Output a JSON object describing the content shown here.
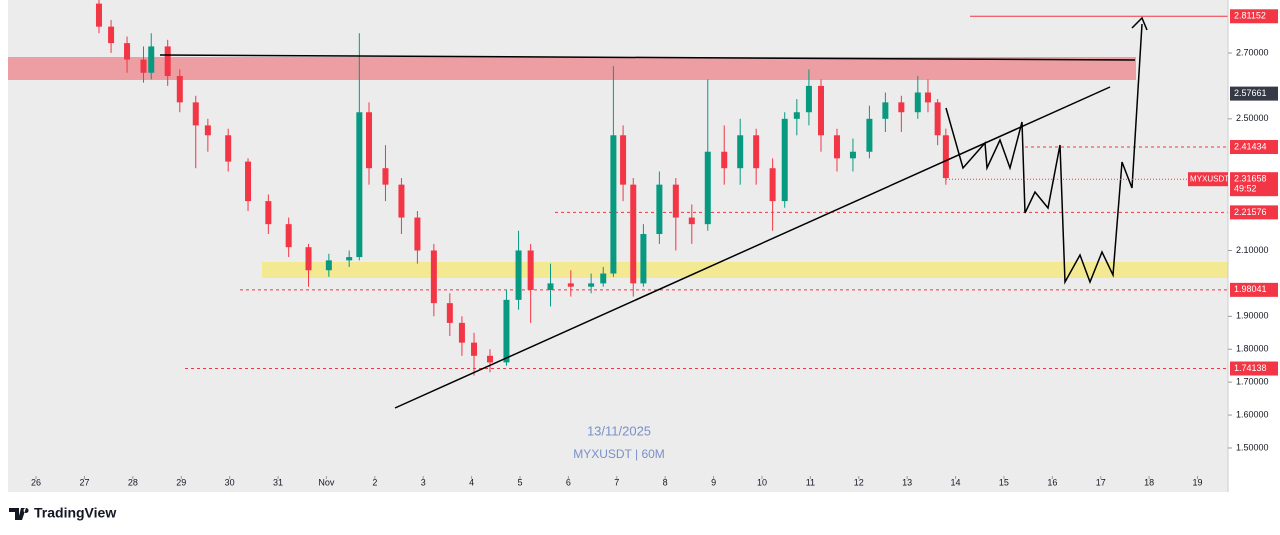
{
  "chart_data": {
    "type": "candlestick",
    "symbol": "MYXUSDT",
    "countdown": "49:52",
    "last_price": 2.31658,
    "watermark": [
      "13/11/2025",
      "MYXUSDT | 60M"
    ],
    "up_color": "#089981",
    "down_color": "#f23645",
    "xlim": [
      -0.58,
      24.63
    ],
    "ylim": [
      1.427,
      2.861
    ],
    "xticks": [
      {
        "value": 0,
        "label": "26"
      },
      {
        "value": 1,
        "label": "27"
      },
      {
        "value": 2,
        "label": "28"
      },
      {
        "value": 3,
        "label": "29"
      },
      {
        "value": 4,
        "label": "30"
      },
      {
        "value": 5,
        "label": "31"
      },
      {
        "value": 6,
        "label": "Nov"
      },
      {
        "value": 7,
        "label": "2"
      },
      {
        "value": 8,
        "label": "3"
      },
      {
        "value": 9,
        "label": "4"
      },
      {
        "value": 10,
        "label": "5"
      },
      {
        "value": 11,
        "label": "6"
      },
      {
        "value": 12,
        "label": "7"
      },
      {
        "value": 13,
        "label": "8"
      },
      {
        "value": 14,
        "label": "9"
      },
      {
        "value": 15,
        "label": "10"
      },
      {
        "value": 16,
        "label": "11"
      },
      {
        "value": 17,
        "label": "12"
      },
      {
        "value": 18,
        "label": "13"
      },
      {
        "value": 19,
        "label": "14"
      },
      {
        "value": 20,
        "label": "15"
      },
      {
        "value": 21,
        "label": "16"
      },
      {
        "value": 22,
        "label": "17"
      },
      {
        "value": 23,
        "label": "18"
      },
      {
        "value": 24,
        "label": "19"
      }
    ],
    "yticks": [
      {
        "value": 1.5,
        "label": "1.50000"
      },
      {
        "value": 1.6,
        "label": "1.60000"
      },
      {
        "value": 1.7,
        "label": "1.70000"
      },
      {
        "value": 1.8,
        "label": "1.80000"
      },
      {
        "value": 1.9,
        "label": "1.90000"
      },
      {
        "value": 2.1,
        "label": "2.10000"
      },
      {
        "value": 2.5,
        "label": "2.50000"
      },
      {
        "value": 2.7,
        "label": "2.70000"
      }
    ],
    "levels": [
      {
        "value": 2.81152,
        "color": "#f23645"
      },
      {
        "value": 2.57661,
        "color": "#363a45"
      },
      {
        "value": 2.41434,
        "color": "#f23645"
      },
      {
        "value": 2.21576,
        "color": "#f23645"
      },
      {
        "value": 1.98041,
        "color": "#f23645"
      },
      {
        "value": 1.74138,
        "color": "#f23645"
      }
    ],
    "x": [
      1.3,
      1.55,
      1.88,
      2.22,
      2.38,
      2.72,
      2.97,
      3.3,
      3.55,
      3.97,
      4.38,
      4.8,
      5.22,
      5.63,
      6.05,
      6.47,
      6.68,
      6.88,
      7.22,
      7.55,
      7.88,
      8.22,
      8.55,
      8.8,
      9.05,
      9.38,
      9.72,
      9.97,
      10.22,
      10.63,
      11.05,
      11.47,
      11.72,
      11.93,
      12.13,
      12.34,
      12.55,
      12.88,
      13.22,
      13.55,
      13.88,
      14.22,
      14.55,
      14.88,
      15.22,
      15.47,
      15.72,
      15.97,
      16.22,
      16.55,
      16.88,
      17.22,
      17.55,
      17.88,
      18.22,
      18.43,
      18.63,
      18.8
    ],
    "open": [
      2.85,
      2.78,
      2.73,
      2.68,
      2.64,
      2.72,
      2.63,
      2.55,
      2.48,
      2.45,
      2.37,
      2.25,
      2.18,
      2.11,
      2.04,
      2.07,
      2.08,
      2.52,
      2.35,
      2.3,
      2.2,
      2.1,
      1.94,
      1.88,
      1.82,
      1.78,
      1.76,
      1.95,
      2.1,
      1.98,
      2.0,
      1.99,
      2.0,
      2.03,
      2.45,
      2.3,
      2.0,
      2.15,
      2.3,
      2.2,
      2.18,
      2.4,
      2.35,
      2.45,
      2.35,
      2.25,
      2.5,
      2.52,
      2.6,
      2.45,
      2.38,
      2.4,
      2.5,
      2.55,
      2.52,
      2.58,
      2.55,
      2.45
    ],
    "high": [
      2.92,
      2.8,
      2.75,
      2.72,
      2.76,
      2.74,
      2.65,
      2.57,
      2.5,
      2.47,
      2.38,
      2.27,
      2.2,
      2.12,
      2.09,
      2.1,
      2.76,
      2.55,
      2.42,
      2.32,
      2.22,
      2.12,
      1.97,
      1.9,
      1.85,
      1.8,
      1.98,
      2.16,
      2.12,
      2.06,
      2.04,
      2.03,
      2.05,
      2.66,
      2.48,
      2.32,
      2.18,
      2.34,
      2.32,
      2.24,
      2.62,
      2.48,
      2.5,
      2.47,
      2.38,
      2.52,
      2.56,
      2.65,
      2.62,
      2.47,
      2.44,
      2.54,
      2.58,
      2.57,
      2.63,
      2.62,
      2.56,
      2.47
    ],
    "low": [
      2.76,
      2.7,
      2.64,
      2.61,
      2.62,
      2.6,
      2.52,
      2.35,
      2.4,
      2.34,
      2.22,
      2.15,
      2.08,
      1.99,
      2.02,
      2.05,
      2.07,
      2.3,
      2.25,
      2.15,
      2.06,
      1.9,
      1.84,
      1.78,
      1.72,
      1.73,
      1.75,
      1.92,
      1.88,
      1.93,
      1.96,
      1.97,
      1.99,
      2.02,
      2.25,
      1.96,
      1.99,
      2.12,
      2.1,
      2.12,
      2.16,
      2.3,
      2.3,
      2.3,
      2.16,
      2.23,
      2.45,
      2.48,
      2.4,
      2.34,
      2.34,
      2.38,
      2.46,
      2.46,
      2.5,
      2.52,
      2.42,
      2.3
    ],
    "close": [
      2.78,
      2.73,
      2.68,
      2.64,
      2.72,
      2.63,
      2.55,
      2.48,
      2.45,
      2.37,
      2.25,
      2.18,
      2.11,
      2.04,
      2.07,
      2.08,
      2.52,
      2.35,
      2.3,
      2.2,
      2.1,
      1.94,
      1.88,
      1.82,
      1.78,
      1.76,
      1.95,
      2.1,
      1.98,
      2.0,
      1.99,
      2.0,
      2.03,
      2.45,
      2.3,
      2.0,
      2.15,
      2.3,
      2.2,
      2.18,
      2.4,
      2.35,
      2.45,
      2.35,
      2.25,
      2.5,
      2.52,
      2.6,
      2.45,
      2.38,
      2.4,
      2.5,
      2.55,
      2.52,
      2.58,
      2.55,
      2.45,
      2.32
    ]
  },
  "footer": "TradingView"
}
